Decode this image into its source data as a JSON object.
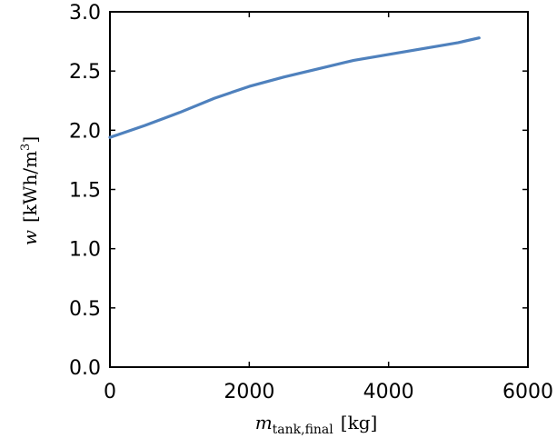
{
  "chart_data": {
    "type": "line",
    "xlabel_var": "m",
    "xlabel_sub": "tank,final",
    "xlabel_unit": "[kg]",
    "ylabel_var": "w",
    "ylabel_unit_pre": "[kWh/m",
    "ylabel_unit_sup": "3",
    "ylabel_unit_post": "]",
    "xlim": [
      0,
      6000
    ],
    "ylim": [
      0.0,
      3.0
    ],
    "x_ticks": [
      "0",
      "2000",
      "4000",
      "6000"
    ],
    "y_ticks": [
      "0.0",
      "0.5",
      "1.0",
      "1.5",
      "2.0",
      "2.5",
      "3.0"
    ],
    "grid": false,
    "series": [
      {
        "color": "#4f81bd",
        "x": [
          0,
          500,
          1000,
          1500,
          2000,
          2500,
          3000,
          3500,
          4000,
          4500,
          5000,
          5300
        ],
        "y": [
          1.94,
          2.04,
          2.15,
          2.27,
          2.37,
          2.45,
          2.52,
          2.59,
          2.64,
          2.69,
          2.74,
          2.78
        ]
      }
    ]
  }
}
